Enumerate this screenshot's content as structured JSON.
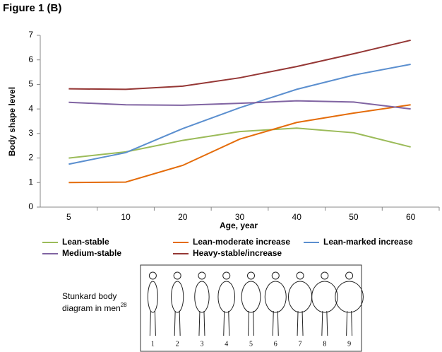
{
  "chart_data": {
    "type": "line",
    "title": "Figure 1 (B)",
    "x_label": "Age, year",
    "y_label": "Body shape level",
    "categories": [
      "5",
      "10",
      "20",
      "30",
      "40",
      "50",
      "60"
    ],
    "series": [
      {
        "name": "Lean-stable",
        "color": "#9bbb59",
        "values": [
          2.0,
          2.25,
          2.72,
          3.08,
          3.22,
          3.03,
          2.45
        ]
      },
      {
        "name": "Lean-moderate increase",
        "color": "#e46c0a",
        "values": [
          1.0,
          1.02,
          1.7,
          2.77,
          3.45,
          3.83,
          4.17
        ]
      },
      {
        "name": "Lean-marked increase",
        "color": "#5b8fcf",
        "values": [
          1.75,
          2.22,
          3.2,
          4.05,
          4.8,
          5.38,
          5.82
        ]
      },
      {
        "name": "Medium-stable",
        "color": "#8064a2",
        "values": [
          4.27,
          4.17,
          4.15,
          4.23,
          4.33,
          4.28,
          4.0
        ]
      },
      {
        "name": "Heavy-stable/increase",
        "color": "#953735",
        "values": [
          4.82,
          4.8,
          4.93,
          5.27,
          5.73,
          6.25,
          6.8
        ]
      }
    ],
    "ylim": [
      0,
      7
    ],
    "yticks": [
      0,
      1,
      2,
      3,
      4,
      5,
      6,
      7
    ],
    "grid": false,
    "legend": "bottom"
  },
  "inset": {
    "caption": [
      "Stunkard body",
      "diagram in men"
    ],
    "caption_ref": "28",
    "labels": [
      "1",
      "2",
      "3",
      "4",
      "5",
      "6",
      "7",
      "8",
      "9"
    ]
  }
}
